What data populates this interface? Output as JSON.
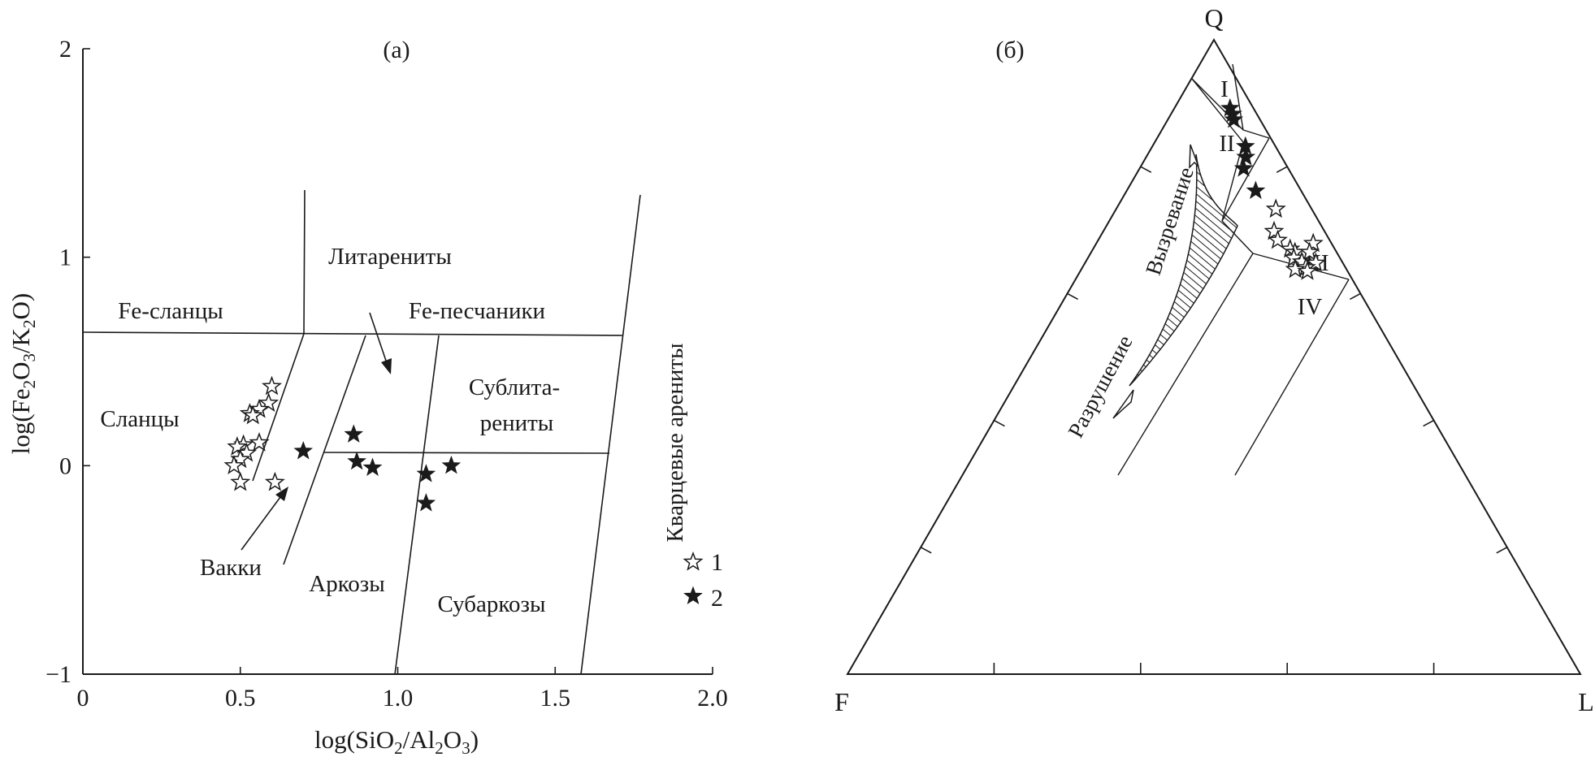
{
  "chart_data": [
    {
      "type": "scatter",
      "panel_label": "(а)",
      "xlabel": "log(SiO2/Al2O3)",
      "ylabel": "log(Fe2O3/K2O)",
      "xlim": [
        0,
        2.0
      ],
      "ylim": [
        -1,
        2
      ],
      "x_ticks": [
        0,
        0.5,
        1.0,
        1.5,
        2.0
      ],
      "x_tick_labels": [
        "0",
        "0.5",
        "1.0",
        "1.5",
        "2.0"
      ],
      "y_ticks": [
        -1,
        0,
        1,
        2
      ],
      "y_tick_labels": [
        "−1",
        "0",
        "1",
        "2"
      ],
      "grid": false,
      "fields": {
        "fe_shales": "Fe-сланцы",
        "litarenites": "Литарениты",
        "fe_sandstones": "Fe-песчаники",
        "shales": "Сланцы",
        "sublitarenites_1": "Сублита-",
        "sublitarenites_2": "рениты",
        "quartz_arenites": "Кварцевые арениты",
        "wackes": "Вакки",
        "arkoses": "Аркозы",
        "subarkoses": "Субаркозы"
      },
      "legend": {
        "placement": "bottom-right",
        "entries": [
          {
            "label": "1",
            "marker": "open-star"
          },
          {
            "label": "2",
            "marker": "filled-star"
          }
        ]
      },
      "series": [
        {
          "legend_label": "1",
          "marker": "open-star",
          "points": [
            {
              "x": 0.6,
              "y": 0.38
            },
            {
              "x": 0.59,
              "y": 0.3
            },
            {
              "x": 0.56,
              "y": 0.27
            },
            {
              "x": 0.53,
              "y": 0.25
            },
            {
              "x": 0.54,
              "y": 0.24
            },
            {
              "x": 0.51,
              "y": 0.1
            },
            {
              "x": 0.49,
              "y": 0.09
            },
            {
              "x": 0.56,
              "y": 0.11
            },
            {
              "x": 0.52,
              "y": 0.06
            },
            {
              "x": 0.5,
              "y": 0.03
            },
            {
              "x": 0.48,
              "y": 0.0
            },
            {
              "x": 0.5,
              "y": -0.08
            },
            {
              "x": 0.61,
              "y": -0.08
            }
          ]
        },
        {
          "legend_label": "2",
          "marker": "filled-star",
          "points": [
            {
              "x": 0.7,
              "y": 0.07
            },
            {
              "x": 0.86,
              "y": 0.15
            },
            {
              "x": 0.87,
              "y": 0.02
            },
            {
              "x": 0.92,
              "y": -0.01
            },
            {
              "x": 1.09,
              "y": -0.04
            },
            {
              "x": 1.17,
              "y": 0.0
            },
            {
              "x": 1.09,
              "y": -0.18
            }
          ]
        }
      ]
    },
    {
      "type": "ternary",
      "panel_label": "(б)",
      "vertices": {
        "top": "Q",
        "left": "F",
        "right": "L"
      },
      "fields": [
        "I",
        "II",
        "III",
        "IV"
      ],
      "arrow_labels": {
        "maturation": "Вызревание",
        "destruction": "Разрушение"
      },
      "grid": false,
      "series": [
        {
          "legend_label": "2",
          "marker": "filled-star",
          "points": [
            {
              "Q": 89.2,
              "F": 3.2,
              "L": 7.6
            },
            {
              "Q": 88.3,
              "F": 3.3,
              "L": 8.4
            },
            {
              "Q": 87.4,
              "F": 3.6,
              "L": 9.0
            },
            {
              "Q": 83.2,
              "F": 4.1,
              "L": 12.7
            },
            {
              "Q": 81.5,
              "F": 4.9,
              "L": 13.6
            },
            {
              "Q": 79.7,
              "F": 6.1,
              "L": 14.2
            },
            {
              "Q": 76.2,
              "F": 6.2,
              "L": 17.6
            }
          ]
        },
        {
          "legend_label": "1",
          "marker": "open-star",
          "points": [
            {
              "Q": 73.3,
              "F": 4.9,
              "L": 21.8
            },
            {
              "Q": 69.8,
              "F": 6.9,
              "L": 23.3
            },
            {
              "Q": 67.9,
              "F": 2.5,
              "L": 29.6
            },
            {
              "Q": 68.4,
              "F": 7.1,
              "L": 24.5
            },
            {
              "Q": 67.0,
              "F": 6.1,
              "L": 26.9
            },
            {
              "Q": 66.5,
              "F": 5.7,
              "L": 27.8
            },
            {
              "Q": 66.5,
              "F": 3.7,
              "L": 29.8
            },
            {
              "Q": 65.6,
              "F": 6.3,
              "L": 28.1
            },
            {
              "Q": 65.0,
              "F": 5.5,
              "L": 29.5
            },
            {
              "Q": 64.8,
              "F": 3.7,
              "L": 31.5
            },
            {
              "Q": 64.1,
              "F": 5.4,
              "L": 30.5
            },
            {
              "Q": 63.8,
              "F": 7.0,
              "L": 29.2
            },
            {
              "Q": 63.5,
              "F": 5.5,
              "L": 31.0
            }
          ]
        }
      ]
    }
  ]
}
